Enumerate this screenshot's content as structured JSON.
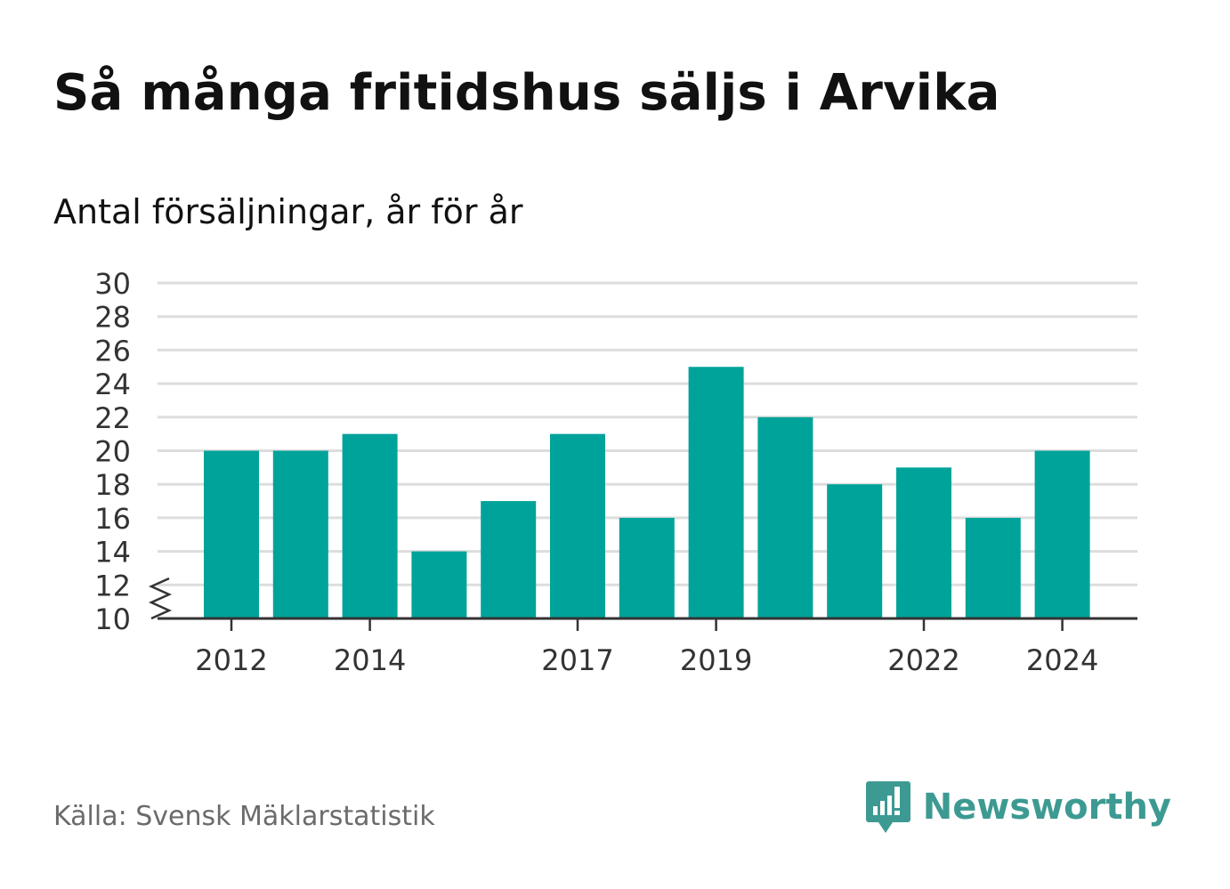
{
  "title": "Så många fritidshus säljs i Arvika",
  "subtitle": "Antal försäljningar, år för år",
  "source": "Källa: Svensk Mäklarstatistik",
  "brand": {
    "name": "Newsworthy",
    "icon": "newsworthy-logo-icon"
  },
  "colors": {
    "bar": "#00a39a",
    "brand": "#3d9a92",
    "grid": "#dddddd",
    "axis": "#333333"
  },
  "chart_data": {
    "type": "bar",
    "categories": [
      "2012",
      "2013",
      "2014",
      "2015",
      "2016",
      "2017",
      "2018",
      "2019",
      "2020",
      "2021",
      "2022",
      "2023",
      "2024"
    ],
    "values": [
      20,
      20,
      21,
      14,
      17,
      21,
      16,
      25,
      22,
      18,
      19,
      16,
      20
    ],
    "x_tick_labels": [
      "2012",
      "2014",
      "2017",
      "2019",
      "2022",
      "2024"
    ],
    "y_ticks": [
      10,
      12,
      14,
      16,
      18,
      20,
      22,
      24,
      26,
      28,
      30
    ],
    "ylim": [
      10,
      30
    ],
    "axis_break": true,
    "grid": true
  }
}
